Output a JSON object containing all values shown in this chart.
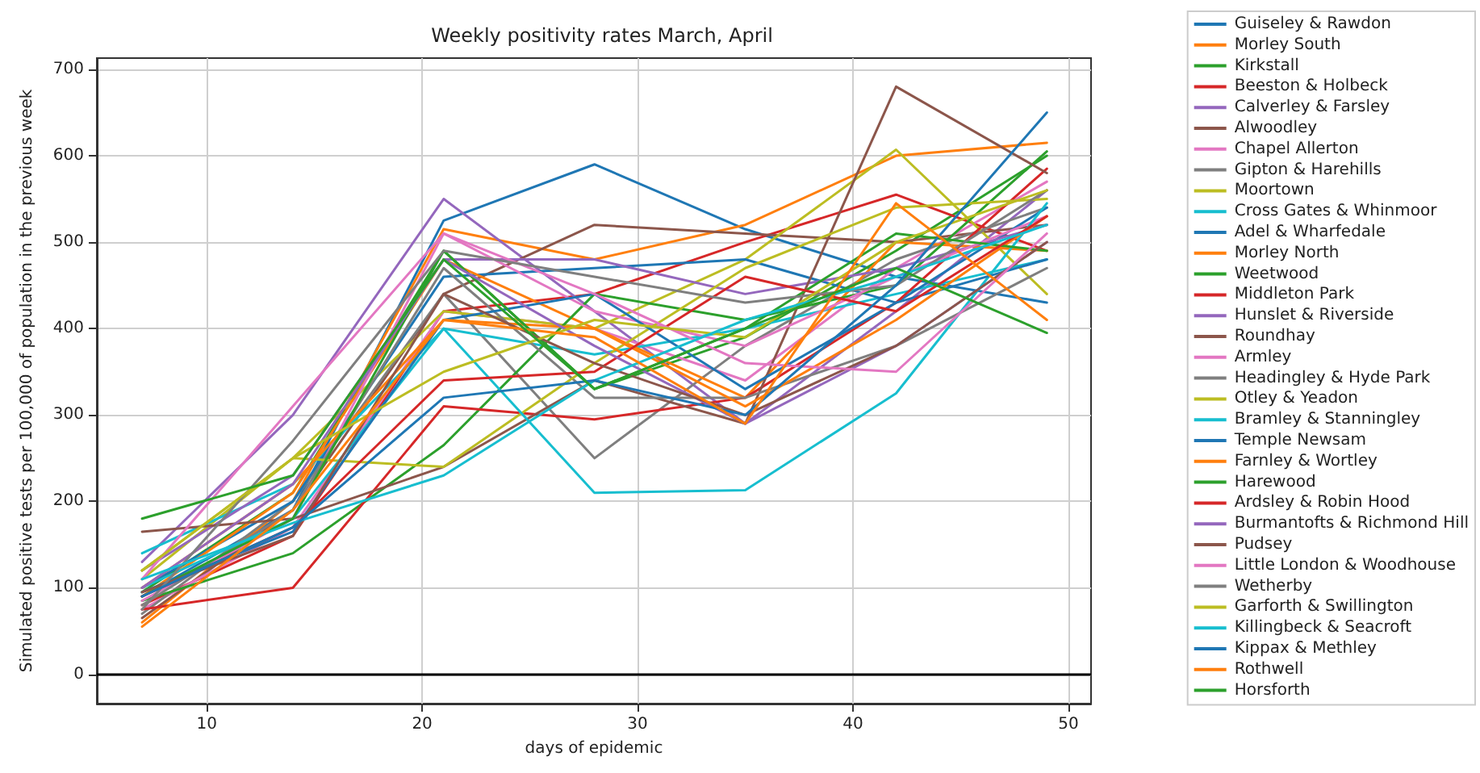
{
  "chart_data": {
    "type": "line",
    "title": "Weekly positivity rates March, April",
    "xlabel": "days of epidemic",
    "ylabel": "Simulated positive tests per 100,000 of population in the previous week",
    "x": [
      7,
      14,
      21,
      28,
      35,
      42,
      49
    ],
    "xlim": [
      4.9,
      51.05
    ],
    "xticks": [
      10,
      20,
      30,
      40,
      50
    ],
    "ylim": [
      -34,
      713
    ],
    "yticks": [
      0,
      100,
      200,
      300,
      400,
      500,
      600,
      700
    ],
    "grid": true,
    "legend": "right",
    "marker": "none",
    "ref_lines": [
      {
        "axis": "y",
        "value": 0,
        "color": "#000000"
      }
    ],
    "series": [
      {
        "name": "Guiseley & Rawdon",
        "color": "#1f77b4",
        "values": [
          90,
          190,
          525,
          590,
          515,
          460,
          430
        ]
      },
      {
        "name": "Morley South",
        "color": "#ff7f0e",
        "values": [
          60,
          200,
          515,
          480,
          520,
          600,
          615
        ]
      },
      {
        "name": "Kirkstall",
        "color": "#2ca02c",
        "values": [
          95,
          210,
          490,
          330,
          390,
          490,
          600
        ]
      },
      {
        "name": "Beeston & Holbeck",
        "color": "#d62728",
        "values": [
          80,
          160,
          420,
          440,
          500,
          555,
          490
        ]
      },
      {
        "name": "Calverley & Farsley",
        "color": "#9467bd",
        "values": [
          130,
          300,
          550,
          420,
          290,
          420,
          560
        ]
      },
      {
        "name": "Alwoodley",
        "color": "#8c564b",
        "values": [
          65,
          190,
          440,
          520,
          510,
          500,
          520
        ]
      },
      {
        "name": "Chapel Allerton",
        "color": "#e377c2",
        "values": [
          75,
          170,
          420,
          400,
          340,
          470,
          570
        ]
      },
      {
        "name": "Gipton & Harehills",
        "color": "#7f7f7f",
        "values": [
          70,
          200,
          440,
          250,
          380,
          480,
          540
        ]
      },
      {
        "name": "Moortown",
        "color": "#bcbd22",
        "values": [
          110,
          250,
          420,
          400,
          480,
          607,
          440
        ]
      },
      {
        "name": "Cross Gates & Whinmoor",
        "color": "#17becf",
        "values": [
          140,
          220,
          400,
          370,
          400,
          440,
          480
        ]
      },
      {
        "name": "Adel & Wharfedale",
        "color": "#1f77b4",
        "values": [
          100,
          200,
          460,
          470,
          480,
          430,
          540
        ]
      },
      {
        "name": "Morley North",
        "color": "#ff7f0e",
        "values": [
          90,
          210,
          480,
          400,
          320,
          500,
          490
        ]
      },
      {
        "name": "Weetwood",
        "color": "#2ca02c",
        "values": [
          85,
          140,
          265,
          440,
          410,
          450,
          605
        ]
      },
      {
        "name": "Middleton Park",
        "color": "#d62728",
        "values": [
          75,
          100,
          310,
          295,
          320,
          430,
          585
        ]
      },
      {
        "name": "Hunslet & Riverside",
        "color": "#9467bd",
        "values": [
          120,
          230,
          480,
          480,
          440,
          470,
          520
        ]
      },
      {
        "name": "Roundhay",
        "color": "#8c564b",
        "values": [
          165,
          180,
          240,
          340,
          290,
          680,
          580
        ]
      },
      {
        "name": "Armley",
        "color": "#e377c2",
        "values": [
          85,
          180,
          510,
          420,
          380,
          460,
          530
        ]
      },
      {
        "name": "Headingley & Hyde Park",
        "color": "#7f7f7f",
        "values": [
          80,
          190,
          470,
          320,
          320,
          380,
          470
        ]
      },
      {
        "name": "Otley & Yeadon",
        "color": "#bcbd22",
        "values": [
          120,
          250,
          240,
          360,
          470,
          540,
          550
        ]
      },
      {
        "name": "Bramley & Stanningley",
        "color": "#17becf",
        "values": [
          100,
          180,
          400,
          210,
          213,
          325,
          545
        ]
      },
      {
        "name": "Temple Newsam",
        "color": "#1f77b4",
        "values": [
          95,
          165,
          410,
          440,
          330,
          430,
          480
        ]
      },
      {
        "name": "Farnley & Wortley",
        "color": "#ff7f0e",
        "values": [
          100,
          220,
          410,
          400,
          310,
          410,
          530
        ]
      },
      {
        "name": "Harewood",
        "color": "#2ca02c",
        "values": [
          90,
          180,
          490,
          330,
          400,
          510,
          490
        ]
      },
      {
        "name": "Ardsley & Robin Hood",
        "color": "#d62728",
        "values": [
          90,
          170,
          340,
          350,
          460,
          420,
          530
        ]
      },
      {
        "name": "Burmantofts & Richmond Hill",
        "color": "#9467bd",
        "values": [
          100,
          220,
          480,
          380,
          290,
          380,
          500
        ]
      },
      {
        "name": "Pudsey",
        "color": "#8c564b",
        "values": [
          95,
          160,
          440,
          360,
          300,
          380,
          500
        ]
      },
      {
        "name": "Little London & Woodhouse",
        "color": "#e377c2",
        "values": [
          110,
          310,
          510,
          440,
          360,
          350,
          510
        ]
      },
      {
        "name": "Wetherby",
        "color": "#7f7f7f",
        "values": [
          75,
          270,
          490,
          460,
          430,
          450,
          560
        ]
      },
      {
        "name": "Garforth & Swillington",
        "color": "#bcbd22",
        "values": [
          120,
          250,
          350,
          410,
          390,
          500,
          560
        ]
      },
      {
        "name": "Killingbeck & Seacroft",
        "color": "#17becf",
        "values": [
          110,
          175,
          230,
          340,
          410,
          460,
          520
        ]
      },
      {
        "name": "Kippax & Methley",
        "color": "#1f77b4",
        "values": [
          90,
          170,
          320,
          340,
          300,
          450,
          650
        ]
      },
      {
        "name": "Rothwell",
        "color": "#ff7f0e",
        "values": [
          55,
          190,
          410,
          390,
          290,
          545,
          410
        ]
      },
      {
        "name": "Horsforth",
        "color": "#2ca02c",
        "values": [
          180,
          230,
          480,
          330,
          400,
          470,
          395
        ]
      }
    ]
  }
}
